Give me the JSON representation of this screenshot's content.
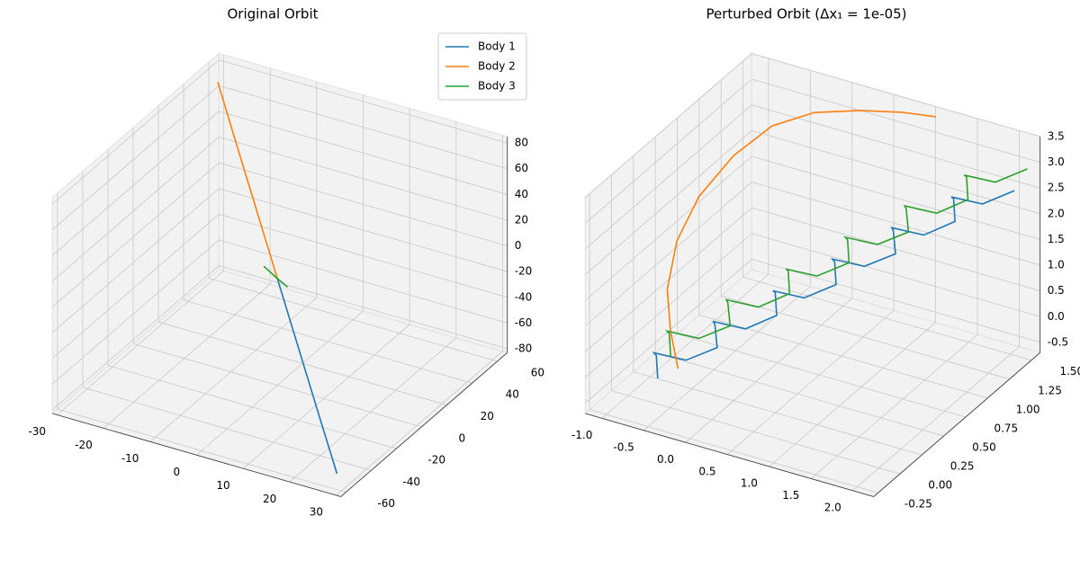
{
  "chart_data": [
    {
      "type": "line3d",
      "title": "Original Orbit",
      "legend": "upper right",
      "xlim": [
        -31,
        31
      ],
      "ylim": [
        -64,
        68
      ],
      "zlim": [
        -83,
        85
      ],
      "xticks": [
        -30,
        -20,
        -10,
        0,
        10,
        20,
        30
      ],
      "yticks": [
        -60,
        -40,
        -20,
        0,
        20,
        40,
        60
      ],
      "zticks": [
        -80,
        -60,
        -40,
        -20,
        0,
        20,
        40,
        60,
        80
      ],
      "series": [
        {
          "name": "Body 1",
          "color": "#1f77b4",
          "x": [
            0,
            10,
            20,
            28
          ],
          "y": [
            0,
            -20,
            -40,
            -56
          ],
          "z": [
            0,
            -27,
            -54,
            -75
          ]
        },
        {
          "name": "Body 2",
          "color": "#ff7f0e",
          "x": [
            0,
            -10,
            -20,
            -28
          ],
          "y": [
            0,
            20,
            40,
            56
          ],
          "z": [
            0,
            27,
            54,
            76
          ]
        },
        {
          "name": "Body 3",
          "color": "#2ca02c",
          "x": [
            -4,
            0,
            3
          ],
          "y": [
            4,
            0,
            -3
          ],
          "z": [
            2,
            0,
            -1
          ]
        }
      ]
    },
    {
      "type": "line3d",
      "title": "Perturbed Orbit (Δx₁ = 1e-05)",
      "xlim": [
        -1.2,
        2.25
      ],
      "ylim": [
        -0.3,
        1.6
      ],
      "zlim": [
        -0.7,
        3.5
      ],
      "xticks": [
        {
          "value": -1,
          "label": "-1.0"
        },
        -0.5,
        {
          "value": 0,
          "label": "0.0"
        },
        0.5,
        {
          "value": 1,
          "label": "1.0"
        },
        1.5,
        {
          "value": 2,
          "label": "2.0"
        }
      ],
      "yticks": [
        -0.25,
        {
          "value": 0,
          "label": "0.00"
        },
        0.25,
        {
          "value": 0.5,
          "label": "0.50"
        },
        0.75,
        {
          "value": 1,
          "label": "1.00"
        },
        1.25,
        {
          "value": 1.5,
          "label": "1.50"
        }
      ],
      "zticks": [
        -0.5,
        {
          "value": 0,
          "label": "0.0"
        },
        0.5,
        {
          "value": 1,
          "label": "1.0"
        },
        1.5,
        {
          "value": 2,
          "label": "2.0"
        },
        2.5,
        {
          "value": 3,
          "label": "3.0"
        },
        3.5
      ],
      "series": [
        {
          "name": "Body 1",
          "color": "#1f77b4",
          "x": [
            -0.7,
            -0.78,
            -0.87,
            -0.55,
            -0.23,
            -0.32,
            -0.4,
            -0.08,
            0.23,
            0.15,
            0.07,
            0.38,
            0.7,
            0.62,
            0.53,
            0.85,
            1.17,
            1.08,
            1.0,
            1.32,
            1.63,
            1.55,
            1.47,
            1.78,
            2.1
          ],
          "y": [
            0.05,
            0.11,
            0.17,
            0.23,
            0.28,
            0.34,
            0.4,
            0.46,
            0.52,
            0.58,
            0.63,
            0.69,
            0.75,
            0.81,
            0.87,
            0.93,
            0.98,
            1.04,
            1.1,
            1.16,
            1.22,
            1.28,
            1.33,
            1.39,
            1.45
          ],
          "z": [
            -0.3,
            0.02,
            -0.06,
            -0.14,
            0.18,
            0.5,
            0.43,
            0.35,
            0.67,
            0.99,
            0.91,
            0.83,
            1.15,
            1.47,
            1.39,
            1.31,
            1.63,
            1.95,
            1.88,
            1.8,
            2.12,
            2.44,
            2.36,
            2.28,
            2.6
          ]
        },
        {
          "name": "Body 2",
          "color": "#ff7f0e",
          "x": [
            -0.3,
            -0.6,
            -0.9,
            -1.1,
            -1.15,
            -1.05,
            -0.8,
            -0.4,
            0.1,
            0.6,
            1.0
          ],
          "y": [
            -0.1,
            0.1,
            0.35,
            0.65,
            0.95,
            1.25,
            1.45,
            1.55,
            1.6,
            1.6,
            1.6
          ],
          "z": [
            0.3,
            0.6,
            0.9,
            1.3,
            1.7,
            2.1,
            2.5,
            2.8,
            3.0,
            3.2,
            3.3
          ]
        },
        {
          "name": "Body 3",
          "color": "#2ca02c",
          "x": [
            -0.65,
            -0.73,
            -0.82,
            -0.5,
            -0.18,
            -0.27,
            -0.35,
            -0.03,
            0.28,
            0.2,
            0.12,
            0.43,
            0.75,
            0.67,
            0.58,
            0.9,
            1.22,
            1.13,
            1.05,
            1.37,
            1.68,
            1.6,
            1.52,
            1.83,
            2.15
          ],
          "y": [
            0.15,
            0.21,
            0.27,
            0.33,
            0.38,
            0.44,
            0.5,
            0.56,
            0.62,
            0.68,
            0.73,
            0.79,
            0.85,
            0.91,
            0.97,
            1.03,
            1.08,
            1.14,
            1.2,
            1.26,
            1.32,
            1.38,
            1.43,
            1.49,
            1.55
          ],
          "z": [
            0,
            0.32,
            0.24,
            0.16,
            0.48,
            0.8,
            0.73,
            0.65,
            0.97,
            1.29,
            1.21,
            1.13,
            1.45,
            1.77,
            1.69,
            1.61,
            1.93,
            2.25,
            2.18,
            2.1,
            2.42,
            2.74,
            2.66,
            2.58,
            2.9
          ]
        }
      ]
    }
  ]
}
